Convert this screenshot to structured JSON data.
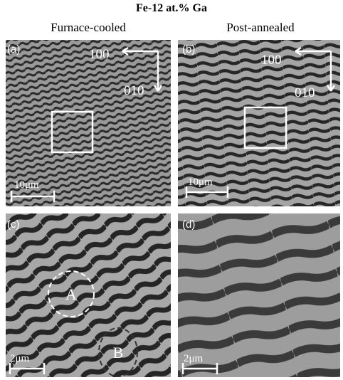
{
  "title": "Fe-12 at.% Ga",
  "columns": [
    "Furnace-cooled",
    "Post-annealed"
  ],
  "panels": [
    {
      "label": "(a)",
      "axes": [
        "100",
        "010"
      ],
      "scale_bar": "10μm"
    },
    {
      "label": "(b)",
      "axes": [
        "100",
        "010"
      ],
      "scale_bar": "10μm"
    },
    {
      "label": "(c)",
      "scale_bar": "2μm",
      "regions": [
        "A",
        "B"
      ]
    },
    {
      "label": "(d)",
      "scale_bar": "2μm"
    }
  ]
}
